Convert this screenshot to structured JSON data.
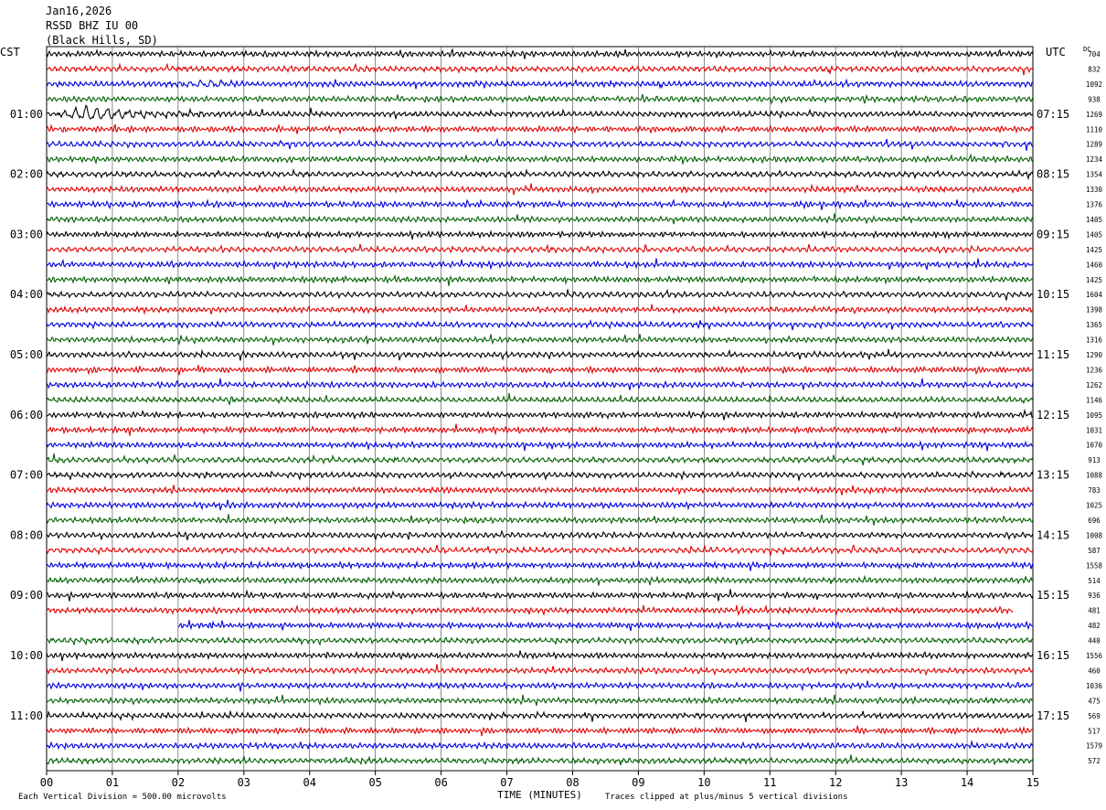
{
  "header": {
    "date": "Jan16,2026",
    "station": "RSSD BHZ IU 00",
    "location": "(Black Hills, SD)"
  },
  "labels": {
    "left_timezone": "CST",
    "right_timezone": "UTC",
    "dc_header": "DC",
    "xlabel": "TIME (MINUTES)",
    "scale_note": "Each Vertical Division =  500.00 microvolts",
    "clip_note": "Traces clipped at plus/minus 5 vertical divisions"
  },
  "chart_data": {
    "type": "line",
    "title": "RSSD BHZ IU 00 (Black Hills, SD) Jan16,2026",
    "xlabel": "TIME (MINUTES)",
    "xlim": [
      0,
      15
    ],
    "x_ticks": [
      "00",
      "01",
      "02",
      "03",
      "04",
      "05",
      "06",
      "07",
      "08",
      "09",
      "10",
      "11",
      "12",
      "13",
      "14",
      "15"
    ],
    "trace_minutes": 15,
    "trace_count": 48,
    "trace_colors": [
      "#000000",
      "#e00000",
      "#0000dd",
      "#006000"
    ],
    "left_hour_labels": [
      "01:00",
      "02:00",
      "03:00",
      "04:00",
      "05:00",
      "06:00",
      "07:00",
      "08:00",
      "09:00",
      "10:00",
      "11:00"
    ],
    "right_hour_labels": [
      "07:15",
      "08:15",
      "09:15",
      "10:15",
      "11:15",
      "12:15",
      "13:15",
      "14:15",
      "15:15",
      "16:15",
      "17:15"
    ],
    "hour_label_first_trace": 4,
    "traces_per_hour": 4,
    "dc_offsets": [
      "704",
      "832",
      "1092",
      "938",
      "1269",
      "1110",
      "1289",
      "1234",
      "1354",
      "1330",
      "1376",
      "1405",
      "1405",
      "1425",
      "1460",
      "1425",
      "1604",
      "1398",
      "1365",
      "1316",
      "1290",
      "1236",
      "1262",
      "1146",
      "1095",
      "1031",
      "1070",
      "913",
      "1088",
      "783",
      "1025",
      "696",
      "1008",
      "587",
      "1558",
      "514",
      "936",
      "481",
      "482",
      "440",
      "1556",
      "460",
      "1036",
      "475",
      "569",
      "517",
      "1579",
      "572"
    ],
    "events": [
      {
        "trace": 4,
        "start_min": 0.1,
        "end_min": 2.6,
        "peak_min": 0.6,
        "amplitude_divisions": 2.2
      },
      {
        "trace": 2,
        "start_min": 1.8,
        "end_min": 3.0,
        "peak_min": 2.6,
        "amplitude_divisions": 1.0
      }
    ],
    "gaps": [
      {
        "trace": 38,
        "start_min": 0.0,
        "end_min": 2.0,
        "note": "partial data"
      },
      {
        "trace": 37,
        "start_min": 14.7,
        "end_min": 15.0
      }
    ],
    "scale_microvolts_per_division": 500.0,
    "clip_divisions": 5
  }
}
